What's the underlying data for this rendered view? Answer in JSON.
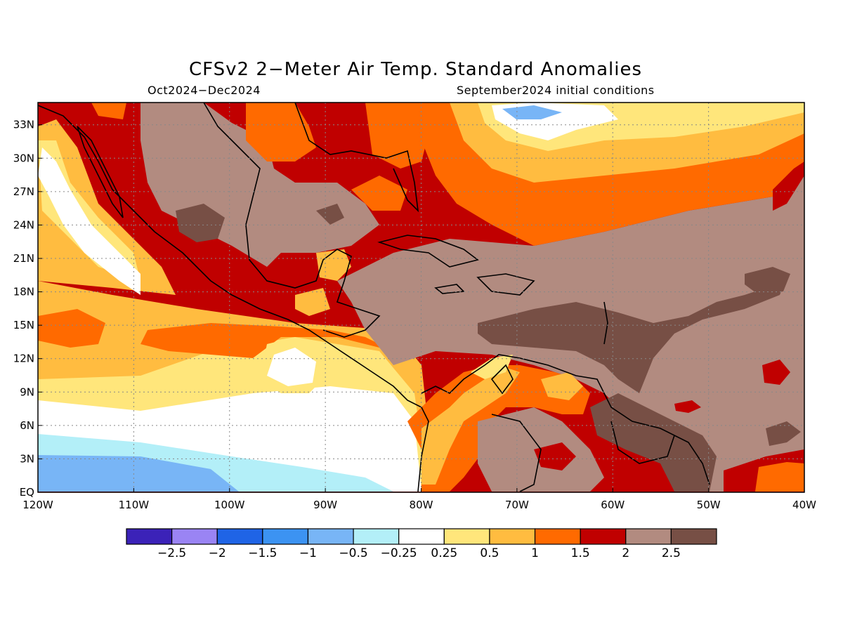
{
  "title": "CFSv2 2−Meter Air Temp. Standard Anomalies",
  "subtitle_left": "Oct2024−Dec2024",
  "subtitle_right": "September2024 initial conditions",
  "map": {
    "lon_range": [
      -120,
      -40
    ],
    "lat_range": [
      0,
      35
    ],
    "lat_ticks": [
      {
        "lat": 33,
        "label": "33N"
      },
      {
        "lat": 30,
        "label": "30N"
      },
      {
        "lat": 27,
        "label": "27N"
      },
      {
        "lat": 24,
        "label": "24N"
      },
      {
        "lat": 21,
        "label": "21N"
      },
      {
        "lat": 18,
        "label": "18N"
      },
      {
        "lat": 15,
        "label": "15N"
      },
      {
        "lat": 12,
        "label": "12N"
      },
      {
        "lat": 9,
        "label": "9N"
      },
      {
        "lat": 6,
        "label": "6N"
      },
      {
        "lat": 3,
        "label": "3N"
      },
      {
        "lat": 0,
        "label": "EQ"
      }
    ],
    "lon_ticks": [
      {
        "lon": -120,
        "label": "120W"
      },
      {
        "lon": -110,
        "label": "110W"
      },
      {
        "lon": -100,
        "label": "100W"
      },
      {
        "lon": -90,
        "label": "90W"
      },
      {
        "lon": -80,
        "label": "80W"
      },
      {
        "lon": -70,
        "label": "70W"
      },
      {
        "lon": -60,
        "label": "60W"
      },
      {
        "lon": -50,
        "label": "50W"
      },
      {
        "lon": -40,
        "label": "40W"
      }
    ],
    "grid": "dotted"
  },
  "colorbar": {
    "colors": [
      "#3b22b8",
      "#9a84f4",
      "#1f64e6",
      "#3c93f2",
      "#78b5f6",
      "#b3eff8",
      "#ffffff",
      "#ffe67b",
      "#ffbc40",
      "#ff6a00",
      "#c00000",
      "#b28b80",
      "#774f45"
    ],
    "labels": [
      "−2.5",
      "−2",
      "−1.5",
      "−1",
      "−0.5",
      "−0.25",
      "0.25",
      "0.5",
      "1",
      "1.5",
      "2",
      "2.5"
    ]
  }
}
